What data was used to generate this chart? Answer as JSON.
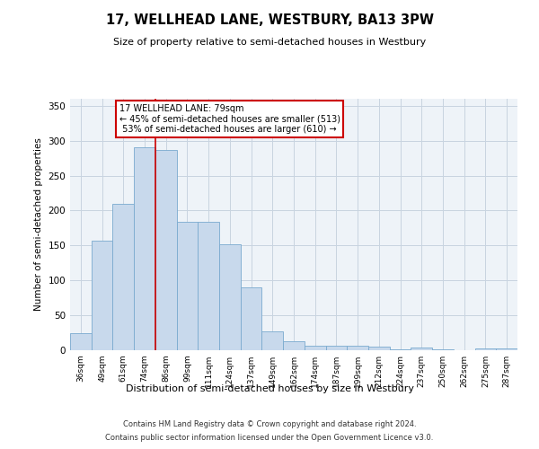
{
  "title": "17, WELLHEAD LANE, WESTBURY, BA13 3PW",
  "subtitle": "Size of property relative to semi-detached houses in Westbury",
  "xlabel": "Distribution of semi-detached houses by size in Westbury",
  "ylabel": "Number of semi-detached properties",
  "categories": [
    "36sqm",
    "49sqm",
    "61sqm",
    "74sqm",
    "86sqm",
    "99sqm",
    "111sqm",
    "124sqm",
    "137sqm",
    "149sqm",
    "162sqm",
    "174sqm",
    "187sqm",
    "199sqm",
    "212sqm",
    "224sqm",
    "237sqm",
    "250sqm",
    "262sqm",
    "275sqm",
    "287sqm"
  ],
  "values": [
    25,
    157,
    210,
    290,
    287,
    184,
    184,
    152,
    90,
    27,
    13,
    7,
    6,
    6,
    5,
    1,
    4,
    1,
    0,
    3,
    3
  ],
  "bar_color": "#c8d9ec",
  "bar_edge_color": "#7aaacf",
  "grid_color": "#c8d4e0",
  "background_color": "#eef3f8",
  "property_label": "17 WELLHEAD LANE: 79sqm",
  "pct_smaller": 45,
  "pct_smaller_count": 513,
  "pct_larger": 53,
  "pct_larger_count": 610,
  "marker_bin_index": 3,
  "annotation_box_color": "#ffffff",
  "annotation_box_edge": "#cc0000",
  "vline_color": "#cc0000",
  "ylim": [
    0,
    360
  ],
  "yticks": [
    0,
    50,
    100,
    150,
    200,
    250,
    300,
    350
  ],
  "footnote1": "Contains HM Land Registry data © Crown copyright and database right 2024.",
  "footnote2": "Contains public sector information licensed under the Open Government Licence v3.0."
}
